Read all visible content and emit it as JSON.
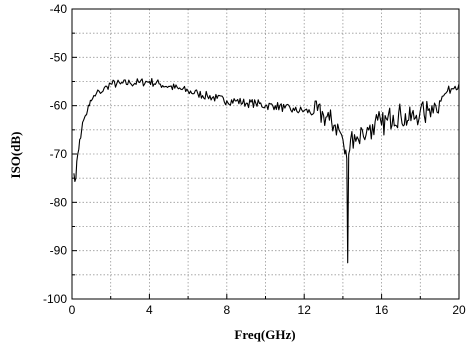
{
  "chart_data": {
    "type": "line",
    "title": "",
    "xlabel": "Freq(GHz)",
    "ylabel": "ISO(dB)",
    "xlim": [
      0,
      20
    ],
    "ylim": [
      -100,
      -40
    ],
    "xticks": [
      0,
      4,
      8,
      12,
      16,
      20
    ],
    "yticks": [
      -100,
      -90,
      -80,
      -70,
      -60,
      -50,
      -40
    ],
    "xtick_labels": [
      "0",
      "4",
      "8",
      "12",
      "16",
      "20"
    ],
    "ytick_labels": [
      "-100",
      "-90",
      "-80",
      "-70",
      "-60",
      "-50",
      "-40"
    ],
    "grid": true,
    "legend": "none",
    "series": [
      {
        "x": [
          0.1,
          0.2,
          0.3,
          0.4,
          0.5,
          0.6,
          0.7,
          0.8,
          0.9,
          1.0,
          1.2,
          1.4,
          1.6,
          1.8,
          2.0,
          2.5,
          3.0,
          3.5,
          4.0,
          4.5,
          5.0,
          5.5,
          6.0,
          6.5,
          7.0,
          7.5,
          8.0,
          8.5,
          9.0,
          9.5,
          10.0,
          10.5,
          11.0,
          11.5,
          12.0,
          12.5,
          13.0,
          13.3,
          13.6,
          13.8,
          14.0,
          14.1,
          14.2,
          14.25,
          14.3,
          14.4,
          14.6,
          14.8,
          15.0,
          15.2,
          15.4,
          15.6,
          15.8,
          16.0,
          16.3,
          16.6,
          17.0,
          17.4,
          17.8,
          18.0,
          18.2,
          18.4,
          18.6,
          18.8,
          19.0,
          19.2,
          19.4,
          19.6,
          19.8,
          20.0
        ],
        "values": [
          -74,
          -75,
          -70,
          -67,
          -65,
          -63,
          -62,
          -61,
          -60,
          -59,
          -58,
          -57,
          -57,
          -56,
          -55.5,
          -55.5,
          -55.3,
          -55.2,
          -55,
          -55.5,
          -56,
          -56.5,
          -57,
          -57.5,
          -58,
          -58.5,
          -59,
          -59,
          -59.5,
          -59.5,
          -60,
          -60,
          -60.5,
          -61,
          -61,
          -61.5,
          -62,
          -63,
          -64,
          -65,
          -67,
          -70,
          -71,
          -92.5,
          -70,
          -67,
          -66,
          -67,
          -65,
          -66,
          -64,
          -66,
          -63,
          -64,
          -63,
          -62,
          -62,
          -63,
          -62,
          -61,
          -62,
          -61,
          -60,
          -60,
          -59,
          -58,
          -57,
          -56.5,
          -56,
          -55.5
        ]
      }
    ]
  }
}
